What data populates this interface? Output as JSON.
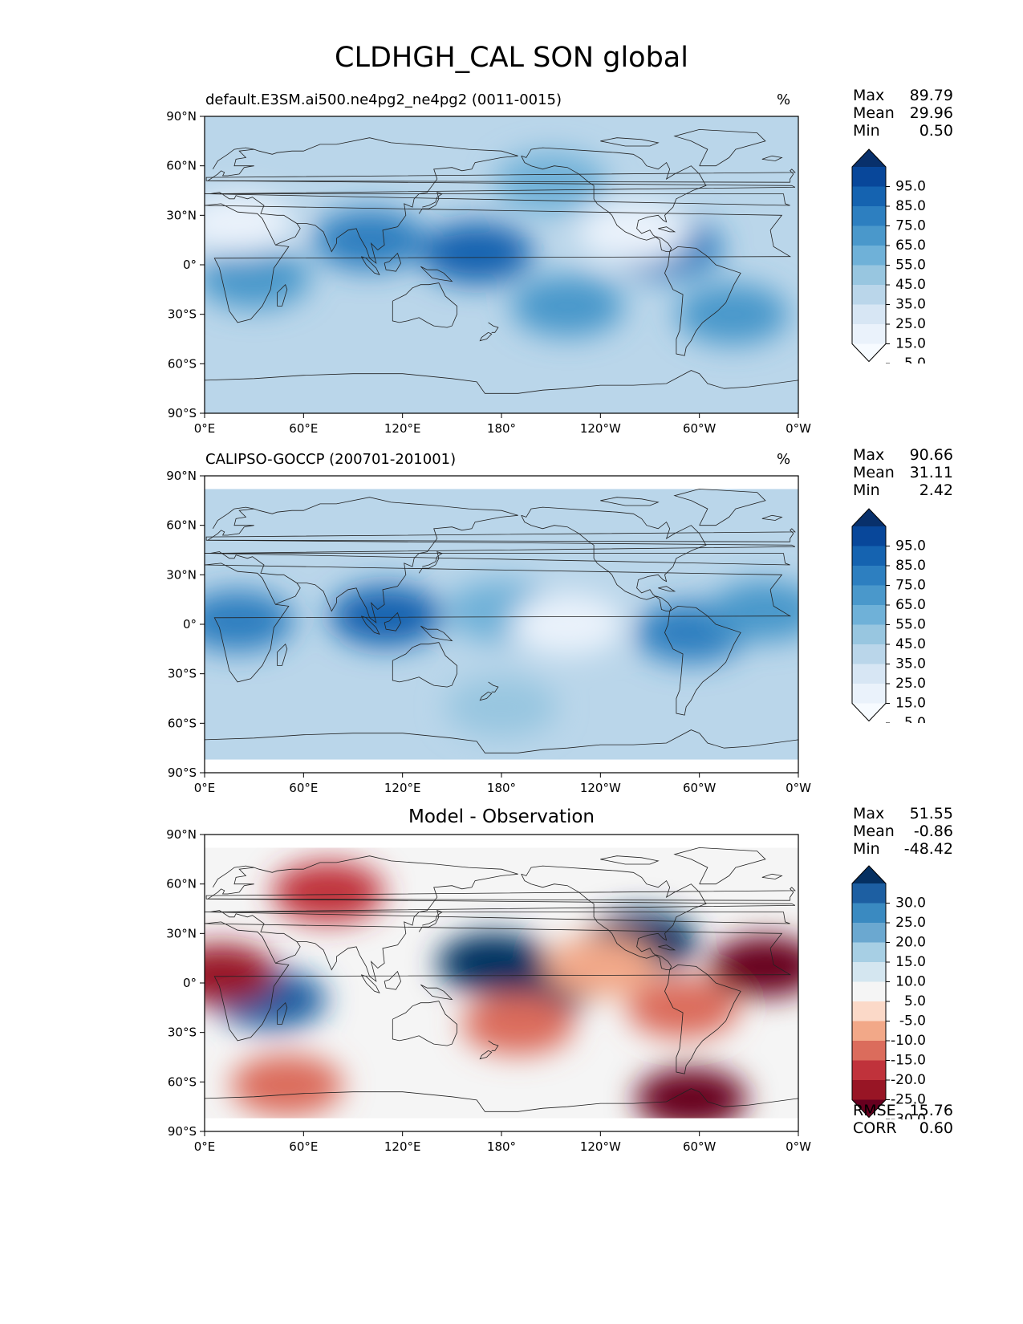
{
  "title": "CLDHGH_CAL SON global",
  "axes": {
    "x_ticks": [
      "0°E",
      "60°E",
      "120°E",
      "180°",
      "120°W",
      "60°W",
      "0°W"
    ],
    "y_ticks": [
      "90°N",
      "60°N",
      "30°N",
      "0°",
      "30°S",
      "60°S",
      "90°S"
    ]
  },
  "panels": [
    {
      "title": "default.E3SM.ai500.ne4pg2_ne4pg2 (0011-0015)",
      "title_style": "left",
      "units": "%",
      "stats": [
        {
          "label": "Max",
          "value": "89.79"
        },
        {
          "label": "Mean",
          "value": "29.96"
        },
        {
          "label": "Min",
          "value": "0.50"
        }
      ],
      "colorbar": {
        "labels": [
          "95.0",
          "85.0",
          "75.0",
          "65.0",
          "55.0",
          "45.0",
          "35.0",
          "25.0",
          "15.0",
          "5.0"
        ],
        "colors": [
          "#08306b",
          "#08479a",
          "#1563b0",
          "#2d7fc0",
          "#4a98cb",
          "#6fb1d8",
          "#98c6e0",
          "#bad6ea",
          "#d7e6f4",
          "#eaf2fb",
          "#f7fbff"
        ]
      },
      "footer": []
    },
    {
      "title": "CALIPSO-GOCCP (200701-201001)",
      "title_style": "left",
      "units": "%",
      "stats": [
        {
          "label": "Max",
          "value": "90.66"
        },
        {
          "label": "Mean",
          "value": "31.11"
        },
        {
          "label": "Min",
          "value": "2.42"
        }
      ],
      "colorbar": {
        "labels": [
          "95.0",
          "85.0",
          "75.0",
          "65.0",
          "55.0",
          "45.0",
          "35.0",
          "25.0",
          "15.0",
          "5.0"
        ],
        "colors": [
          "#08306b",
          "#08479a",
          "#1563b0",
          "#2d7fc0",
          "#4a98cb",
          "#6fb1d8",
          "#98c6e0",
          "#bad6ea",
          "#d7e6f4",
          "#eaf2fb",
          "#f7fbff"
        ]
      },
      "footer": []
    },
    {
      "title": "Model - Observation",
      "title_style": "center",
      "units": "",
      "stats": [
        {
          "label": "Max",
          "value": "51.55"
        },
        {
          "label": "Mean",
          "value": "-0.86"
        },
        {
          "label": "Min",
          "value": "-48.42"
        }
      ],
      "colorbar": {
        "labels": [
          "30.0",
          "25.0",
          "20.0",
          "15.0",
          "10.0",
          "5.0",
          "-5.0",
          "-10.0",
          "-15.0",
          "-20.0",
          "-25.0",
          "-30.0"
        ],
        "colors": [
          "#053061",
          "#1d5fa2",
          "#3a8ac1",
          "#6ba8d0",
          "#a7cfe4",
          "#d4e6f0",
          "#f5f5f5",
          "#fbd9c8",
          "#f2a888",
          "#db6c5c",
          "#c0323b",
          "#981525",
          "#67001f"
        ]
      },
      "footer": [
        {
          "label": "RMSE",
          "value": "15.76"
        },
        {
          "label": "CORR",
          "value": "0.60"
        }
      ]
    }
  ],
  "chart_data": [
    {
      "type": "heatmap",
      "title": "default.E3SM.ai500.ne4pg2_ne4pg2 (0011-0015)",
      "units": "%",
      "levels": [
        5,
        15,
        25,
        35,
        45,
        55,
        65,
        75,
        85,
        95
      ],
      "xlim": [
        0,
        360
      ],
      "ylim": [
        -90,
        90
      ],
      "max": 89.79,
      "mean": 29.96,
      "min": 0.5,
      "features": [
        {
          "lon": 165,
          "lat": 7,
          "value": 80
        },
        {
          "lon": 100,
          "lat": 15,
          "value": 70
        },
        {
          "lon": 280,
          "lat": 10,
          "value": 70
        },
        {
          "lon": 30,
          "lat": -8,
          "value": 60
        },
        {
          "lon": 220,
          "lat": -25,
          "value": 55
        },
        {
          "lon": 320,
          "lat": -30,
          "value": 55
        },
        {
          "lon": 210,
          "lat": 50,
          "value": 45
        },
        {
          "lon": 260,
          "lat": 20,
          "value": 10
        },
        {
          "lon": 20,
          "lat": 25,
          "value": 10
        }
      ]
    },
    {
      "type": "heatmap",
      "title": "CALIPSO-GOCCP (200701-201001)",
      "units": "%",
      "levels": [
        5,
        15,
        25,
        35,
        45,
        55,
        65,
        75,
        85,
        95
      ],
      "xlim": [
        0,
        360
      ],
      "ylim": [
        -90,
        90
      ],
      "max": 90.66,
      "mean": 31.11,
      "min": 2.42,
      "features": [
        {
          "lon": 110,
          "lat": 5,
          "value": 75
        },
        {
          "lon": 20,
          "lat": 2,
          "value": 65
        },
        {
          "lon": 295,
          "lat": -5,
          "value": 65
        },
        {
          "lon": 180,
          "lat": 8,
          "value": 50
        },
        {
          "lon": 340,
          "lat": 8,
          "value": 55
        },
        {
          "lon": 180,
          "lat": -50,
          "value": 40
        },
        {
          "lon": 220,
          "lat": 0,
          "value": 12
        }
      ]
    },
    {
      "type": "heatmap",
      "title": "Model - Observation",
      "levels": [
        -30,
        -25,
        -20,
        -15,
        -10,
        -5,
        5,
        10,
        15,
        20,
        25,
        30
      ],
      "xlim": [
        0,
        360
      ],
      "ylim": [
        -90,
        90
      ],
      "max": 51.55,
      "mean": -0.86,
      "min": -48.42,
      "rmse": 15.76,
      "corr": 0.6,
      "features": [
        {
          "lon": 175,
          "lat": 12,
          "value": 35
        },
        {
          "lon": 205,
          "lat": 0,
          "value": 35
        },
        {
          "lon": 265,
          "lat": 25,
          "value": 30
        },
        {
          "lon": 40,
          "lat": -10,
          "value": 25
        },
        {
          "lon": 10,
          "lat": 5,
          "value": -30
        },
        {
          "lon": 340,
          "lat": 10,
          "value": -35
        },
        {
          "lon": 75,
          "lat": 55,
          "value": -25
        },
        {
          "lon": 295,
          "lat": -70,
          "value": -35
        },
        {
          "lon": 50,
          "lat": -62,
          "value": -20
        },
        {
          "lon": 190,
          "lat": -25,
          "value": -20
        },
        {
          "lon": 290,
          "lat": -15,
          "value": -20
        },
        {
          "lon": 240,
          "lat": 10,
          "value": -15
        }
      ]
    }
  ]
}
